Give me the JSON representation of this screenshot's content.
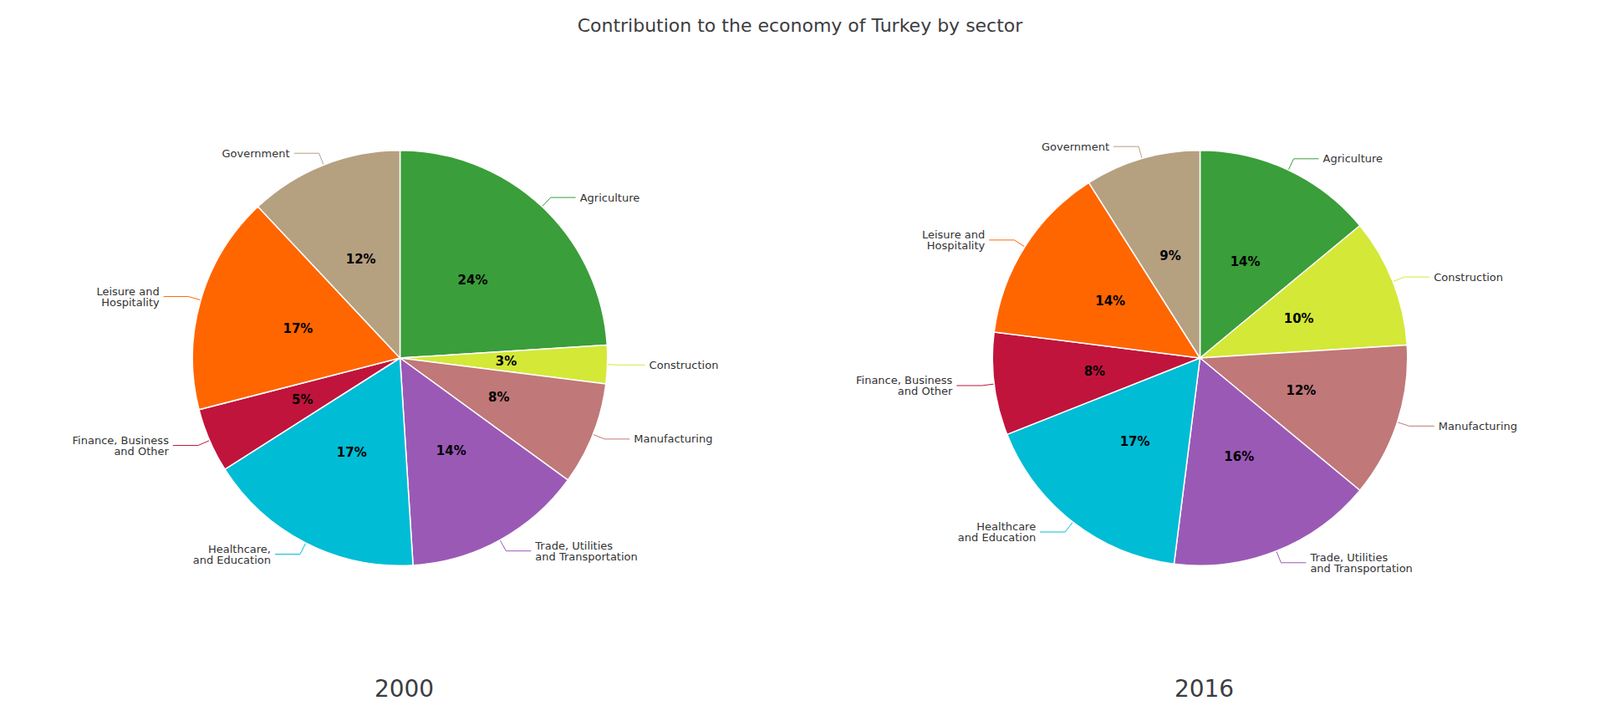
{
  "title": "Contribution to the economy of Turkey by sector",
  "chart_data": [
    {
      "type": "pie",
      "title": "2000",
      "categories": [
        "Agriculture",
        "Construction",
        "Manufacturing",
        "Trade, Utilities\nand Transportation",
        "Healthcare,\nand Education",
        "Finance, Business\nand Other",
        "Leisure and\nHospitality",
        "Government"
      ],
      "values": [
        24,
        3,
        8,
        14,
        17,
        5,
        17,
        12
      ],
      "value_labels": [
        "24%",
        "3%",
        "8%",
        "14%",
        "17%",
        "5%",
        "17%",
        "12%"
      ],
      "colors": [
        "#3a9e3a",
        "#d4e838",
        "#c07878",
        "#9b59b6",
        "#00bcd4",
        "#c0143c",
        "#ff6600",
        "#b5a080"
      ],
      "data_labels": true
    },
    {
      "type": "pie",
      "title": "2016",
      "categories": [
        "Agriculture",
        "Construction",
        "Manufacturing",
        "Trade, Utilities\nand Transportation",
        "Healthcare\nand Education",
        "Finance, Business\nand Other",
        "Leisure and\nHospitality",
        "Government"
      ],
      "values": [
        14,
        10,
        12,
        16,
        17,
        8,
        14,
        9
      ],
      "value_labels": [
        "14%",
        "10%",
        "12%",
        "16%",
        "17%",
        "8%",
        "14%",
        "9%"
      ],
      "colors": [
        "#3a9e3a",
        "#d4e838",
        "#c07878",
        "#9b59b6",
        "#00bcd4",
        "#c0143c",
        "#ff6600",
        "#b5a080"
      ],
      "data_labels": true
    }
  ]
}
